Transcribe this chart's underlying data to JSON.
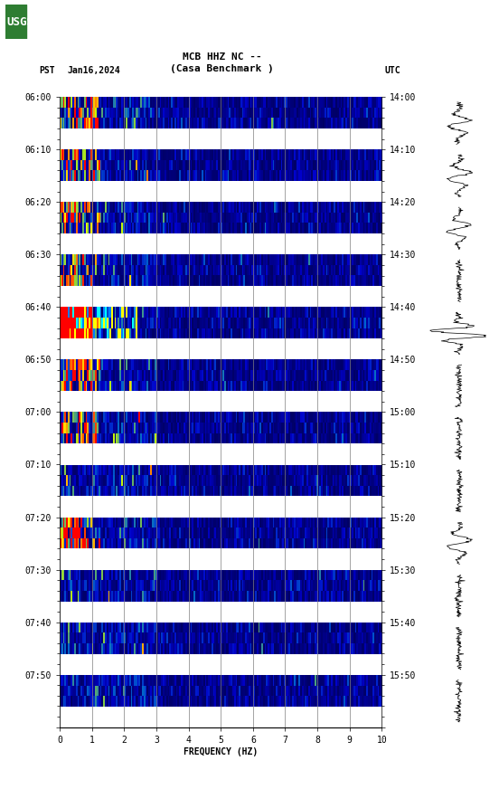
{
  "title_line1": "MCB HHZ NC --",
  "title_line2": "(Casa Benchmark )",
  "left_label": "PST",
  "date_label": "Jan16,2024",
  "right_label": "UTC",
  "xlabel": "FREQUENCY (HZ)",
  "freq_min": 0,
  "freq_max": 10,
  "freq_ticks": [
    0,
    1,
    2,
    3,
    4,
    5,
    6,
    7,
    8,
    9,
    10
  ],
  "pst_times": [
    "06:00",
    "06:10",
    "06:20",
    "06:30",
    "06:40",
    "06:50",
    "07:00",
    "07:10",
    "07:20",
    "07:30",
    "07:40",
    "07:50"
  ],
  "utc_times": [
    "14:00",
    "14:10",
    "14:20",
    "14:30",
    "14:40",
    "14:50",
    "15:00",
    "15:10",
    "15:20",
    "15:30",
    "15:40",
    "15:50"
  ],
  "n_time_rows": 12,
  "n_freq_bins": 200,
  "background_color": "white",
  "fig_width": 5.52,
  "fig_height": 8.93,
  "dpi": 100
}
